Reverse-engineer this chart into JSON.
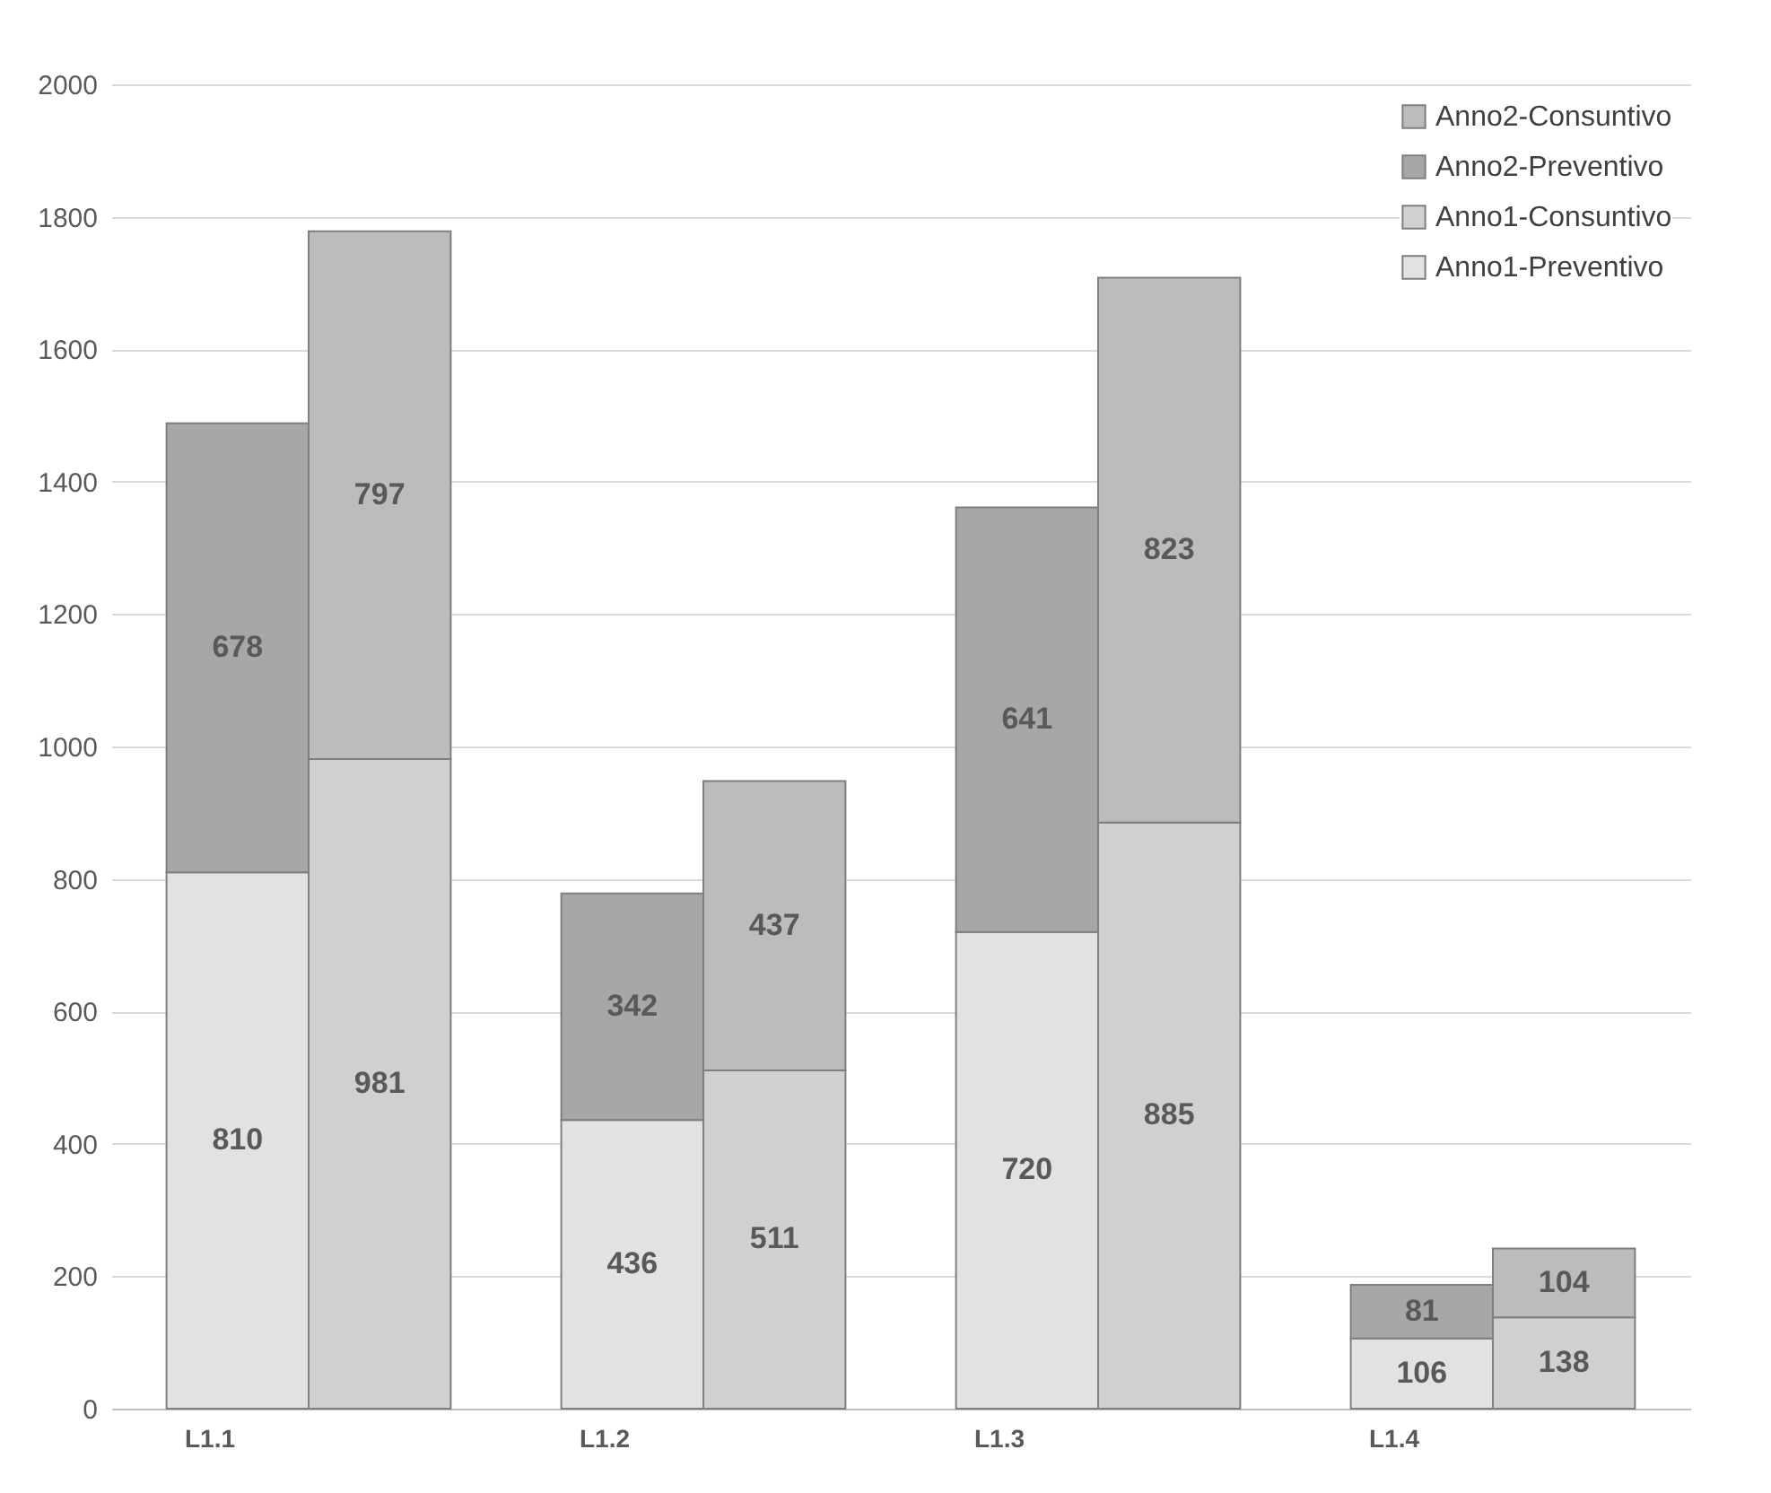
{
  "chart_data": {
    "type": "bar",
    "stacked": true,
    "categories": [
      "L1.1",
      null,
      "L1.2",
      null,
      "L1.3",
      null,
      "L1.4",
      null
    ],
    "series": [
      {
        "name": "Anno1-Preventivo",
        "color": "#e2e2e2",
        "values": [
          810,
          null,
          436,
          null,
          720,
          null,
          106,
          null
        ]
      },
      {
        "name": "Anno1-Consuntivo",
        "color": "#d0d0d0",
        "values": [
          null,
          981,
          null,
          511,
          null,
          885,
          null,
          138
        ]
      },
      {
        "name": "Anno2-Preventivo",
        "color": "#a8a6a6",
        "values": [
          678,
          null,
          342,
          null,
          641,
          null,
          81,
          null
        ]
      },
      {
        "name": "Anno2-Consuntivo",
        "color": "#bdbbbb",
        "values": [
          null,
          797,
          null,
          437,
          null,
          823,
          null,
          104
        ]
      }
    ],
    "ylim": [
      0,
      2000
    ],
    "yticks": [
      0,
      200,
      400,
      600,
      800,
      1000,
      1200,
      1400,
      1600,
      1800,
      2000
    ],
    "grid": "y",
    "legend": "top right",
    "data_labels": true
  }
}
